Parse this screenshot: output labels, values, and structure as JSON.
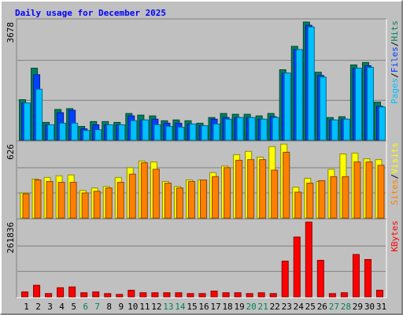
{
  "chart_data": [
    {
      "type": "bar",
      "title": "Daily usage for December 2025",
      "legend_separator": "/",
      "ylim": [
        0,
        3678
      ],
      "yticks": [
        3678
      ],
      "series": [
        {
          "name": "Hits",
          "color": "#00805c",
          "values": [
            1260,
            2242,
            554,
            957,
            982,
            428,
            579,
            579,
            554,
            831,
            781,
            756,
            605,
            630,
            605,
            529,
            705,
            831,
            806,
            806,
            756,
            831,
            2192,
            2922,
            3678,
            2116,
            705,
            731,
            2343,
            2418,
            1184
          ]
        },
        {
          "name": "Files",
          "color": "#0040ff",
          "values": [
            1159,
            2040,
            479,
            857,
            932,
            353,
            479,
            479,
            479,
            756,
            630,
            655,
            529,
            529,
            504,
            453,
            655,
            705,
            705,
            705,
            655,
            731,
            2091,
            2821,
            3577,
            2015,
            630,
            655,
            2242,
            2318,
            1058
          ]
        },
        {
          "name": "Pages",
          "color": "#00c0ff",
          "values": [
            1159,
            1587,
            479,
            529,
            529,
            302,
            327,
            479,
            479,
            605,
            630,
            479,
            428,
            403,
            504,
            453,
            504,
            655,
            705,
            705,
            655,
            705,
            2091,
            2821,
            3526,
            1965,
            630,
            655,
            2242,
            2267,
            1033
          ]
        }
      ]
    },
    {
      "type": "bar",
      "legend_separator": "/",
      "ylim": [
        0,
        626
      ],
      "yticks": [
        626
      ],
      "series": [
        {
          "name": "Visits",
          "color": "#ffff00",
          "values": [
            213,
            330,
            344,
            358,
            365,
            234,
            255,
            268,
            344,
            427,
            482,
            475,
            310,
            268,
            323,
            323,
            385,
            440,
            537,
            564,
            516,
            605,
            626,
            261,
            337,
            310,
            413,
            543,
            550,
            502,
            495
          ]
        },
        {
          "name": "Sites",
          "color": "#ff8000",
          "values": [
            206,
            323,
            310,
            303,
            303,
            213,
            227,
            255,
            303,
            372,
            468,
            413,
            296,
            255,
            310,
            323,
            351,
            427,
            489,
            495,
            495,
            406,
            557,
            220,
            296,
            317,
            351,
            351,
            475,
            475,
            447
          ]
        }
      ]
    },
    {
      "type": "bar",
      "ylim": [
        0,
        261836
      ],
      "yticks": [
        261836
      ],
      "categories": [
        "1",
        "2",
        "3",
        "4",
        "5",
        "6",
        "7",
        "8",
        "9",
        "10",
        "11",
        "12",
        "13",
        "14",
        "15",
        "16",
        "17",
        "18",
        "19",
        "20",
        "21",
        "22",
        "23",
        "24",
        "25",
        "26",
        "27",
        "28",
        "29",
        "30",
        "31"
      ],
      "category_colors": [
        "#000000",
        "#000000",
        "#000000",
        "#000000",
        "#000000",
        "#00805c",
        "#00805c",
        "#000000",
        "#000000",
        "#000000",
        "#000000",
        "#000000",
        "#00805c",
        "#00805c",
        "#000000",
        "#000000",
        "#000000",
        "#000000",
        "#000000",
        "#00805c",
        "#00805c",
        "#000000",
        "#000000",
        "#000000",
        "#000000",
        "#000000",
        "#00805c",
        "#00805c",
        "#000000",
        "#000000",
        "#000000"
      ],
      "series": [
        {
          "name": "KBytes",
          "color": "#ff0000",
          "values": [
            17456,
            40730,
            11637,
            32001,
            34911,
            14546,
            17456,
            11637,
            8728,
            23274,
            14546,
            14546,
            14546,
            14546,
            11637,
            11637,
            20365,
            14546,
            14546,
            11637,
            14546,
            11637,
            125100,
            209469,
            261836,
            128009,
            11637,
            14546,
            148373,
            130919,
            23274
          ]
        }
      ]
    }
  ]
}
